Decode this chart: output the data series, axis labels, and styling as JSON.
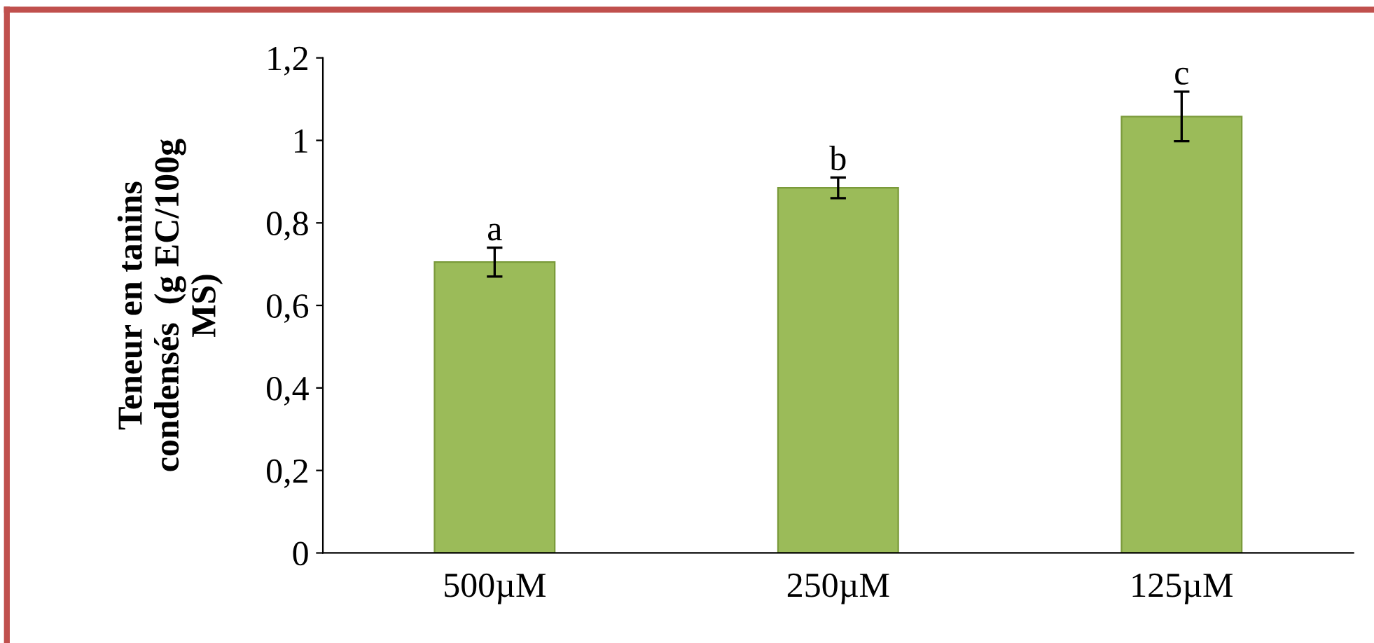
{
  "chart_data": {
    "type": "bar",
    "ylabel": "Teneur en tanins\ncondensés  (g EC/100g\nMS)",
    "categories": [
      "500µM",
      "250µM",
      "125µM"
    ],
    "values": [
      0.705,
      0.885,
      1.058
    ],
    "errors": [
      0.035,
      0.025,
      0.06
    ],
    "color": "#9bbb59",
    "ylim": [
      0,
      1.2
    ],
    "yticks": [
      0,
      {
        "value": 0.2,
        "label": "0,2"
      },
      {
        "value": 0.4,
        "label": "0,4"
      },
      {
        "value": 0.6,
        "label": "0,6"
      },
      {
        "value": 0.8,
        "label": "0,8"
      },
      1,
      {
        "value": 1.2,
        "label": "1,2"
      }
    ],
    "annotations": [
      {
        "text": "a",
        "x": "500µM",
        "y": 0.74
      },
      {
        "text": "b",
        "x": "250µM",
        "y": 0.91
      },
      {
        "text": "c",
        "x": "125µM",
        "y": 1.118
      }
    ],
    "grid": false,
    "legend": false
  }
}
